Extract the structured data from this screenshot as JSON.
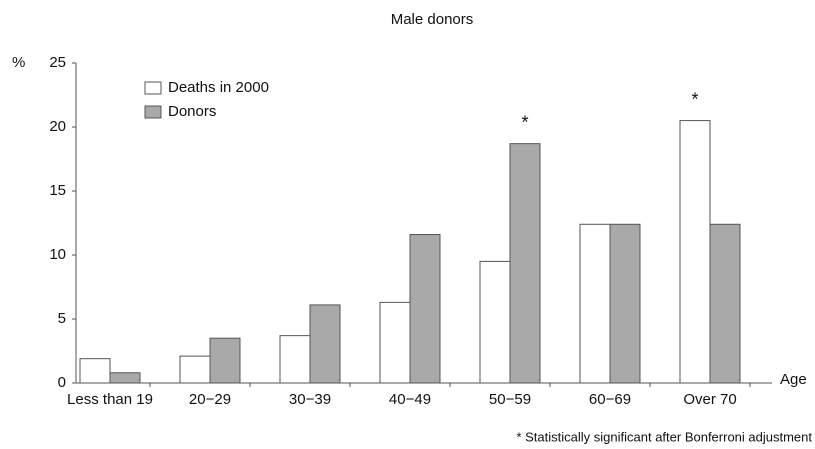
{
  "chart_data": {
    "type": "bar",
    "title": "Male donors",
    "y_label": "%",
    "x_label": "Age",
    "categories": [
      "Less than 19",
      "20−29",
      "30−39",
      "40−49",
      "50−59",
      "60−69",
      "Over 70"
    ],
    "series": [
      {
        "name": "Deaths in 2000",
        "color": "#ffffff",
        "values": [
          1.9,
          2.1,
          3.7,
          6.3,
          9.5,
          12.4,
          20.5
        ]
      },
      {
        "name": "Donors",
        "color": "#a9a9a9",
        "values": [
          0.8,
          3.5,
          6.1,
          11.6,
          18.7,
          12.4,
          12.4
        ]
      }
    ],
    "ylim": [
      0,
      25
    ],
    "yticks": [
      0,
      5,
      10,
      15,
      20,
      25
    ],
    "legend": "upper left",
    "annotations": [
      {
        "text": "*",
        "category": "50−59",
        "series": "Donors"
      },
      {
        "text": "*",
        "category": "Over 70",
        "series": "Deaths in 2000"
      }
    ],
    "footnote": "* Statistically significant after Bonferroni adjustment"
  }
}
